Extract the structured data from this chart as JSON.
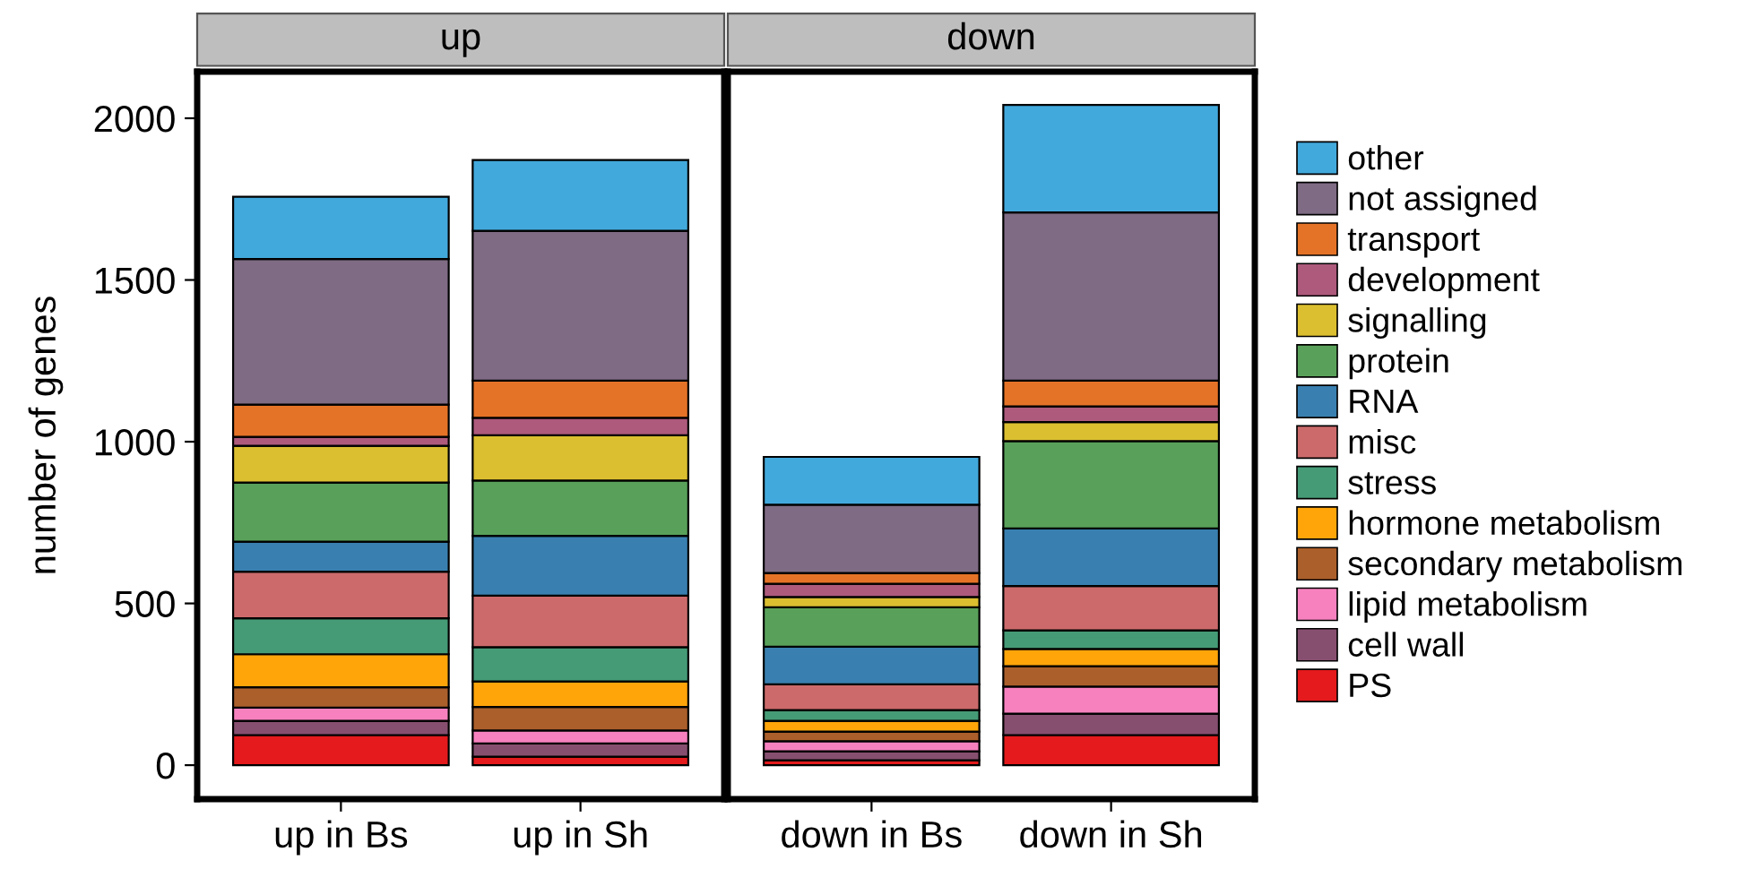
{
  "chart_data": [
    {
      "type": "bar",
      "title": "up",
      "ylabel": "number of genes",
      "categories": [
        "up in Bs",
        "up in Sh"
      ],
      "stacked": true,
      "ylim": [
        -105,
        2144
      ],
      "yticks": [
        0,
        500,
        1000,
        1500,
        2000
      ],
      "grid": false,
      "legend": "right",
      "series": [
        {
          "name": "PS",
          "color": "#e41a1c",
          "values": [
            93,
            26
          ]
        },
        {
          "name": "cell wall",
          "color": "#874f6f",
          "values": [
            44,
            41
          ]
        },
        {
          "name": "lipid metabolism",
          "color": "#f781bf",
          "values": [
            41,
            40
          ]
        },
        {
          "name": "secondary metabolism",
          "color": "#ab5f2b",
          "values": [
            63,
            73
          ]
        },
        {
          "name": "hormone metabolism",
          "color": "#ffa50a",
          "values": [
            102,
            79
          ]
        },
        {
          "name": "stress",
          "color": "#459b76",
          "values": [
            111,
            106
          ]
        },
        {
          "name": "misc",
          "color": "#cc6a6b",
          "values": [
            144,
            159
          ]
        },
        {
          "name": "RNA",
          "color": "#3980b0",
          "values": [
            93,
            185
          ]
        },
        {
          "name": "protein",
          "color": "#59a15a",
          "values": [
            183,
            171
          ]
        },
        {
          "name": "signalling",
          "color": "#dbbf30",
          "values": [
            113,
            140
          ]
        },
        {
          "name": "development",
          "color": "#ad5a7c",
          "values": [
            28,
            54
          ]
        },
        {
          "name": "transport",
          "color": "#e57327",
          "values": [
            100,
            115
          ]
        },
        {
          "name": "not assigned",
          "color": "#7f6b84",
          "values": [
            450,
            463
          ]
        },
        {
          "name": "other",
          "color": "#42a9dc",
          "values": [
            192,
            219
          ]
        }
      ]
    },
    {
      "type": "bar",
      "title": "down",
      "categories": [
        "down in Bs",
        "down in Sh"
      ],
      "stacked": true,
      "ylim": [
        -105,
        2144
      ],
      "yticks": [
        0,
        500,
        1000,
        1500,
        2000
      ],
      "grid": false,
      "tick_labels": "x",
      "series": [
        {
          "color": "#e41a1c",
          "values": [
            15,
            93
          ]
        },
        {
          "color": "#874f6f",
          "values": [
            28,
            66
          ]
        },
        {
          "color": "#f781bf",
          "values": [
            31,
            84
          ]
        },
        {
          "color": "#ab5f2b",
          "values": [
            30,
            63
          ]
        },
        {
          "color": "#ffa50a",
          "values": [
            33,
            53
          ]
        },
        {
          "color": "#459b76",
          "values": [
            33,
            58
          ]
        },
        {
          "color": "#cc6a6b",
          "values": [
            80,
            137
          ]
        },
        {
          "color": "#3980b0",
          "values": [
            116,
            178
          ]
        },
        {
          "color": "#59a15a",
          "values": [
            122,
            270
          ]
        },
        {
          "color": "#dbbf30",
          "values": [
            32,
            59
          ]
        },
        {
          "color": "#ad5a7c",
          "values": [
            41,
            48
          ]
        },
        {
          "color": "#e57327",
          "values": [
            33,
            80
          ]
        },
        {
          "color": "#7f6b84",
          "values": [
            211,
            520
          ]
        },
        {
          "color": "#42a9dc",
          "values": [
            148,
            332
          ]
        }
      ]
    }
  ]
}
